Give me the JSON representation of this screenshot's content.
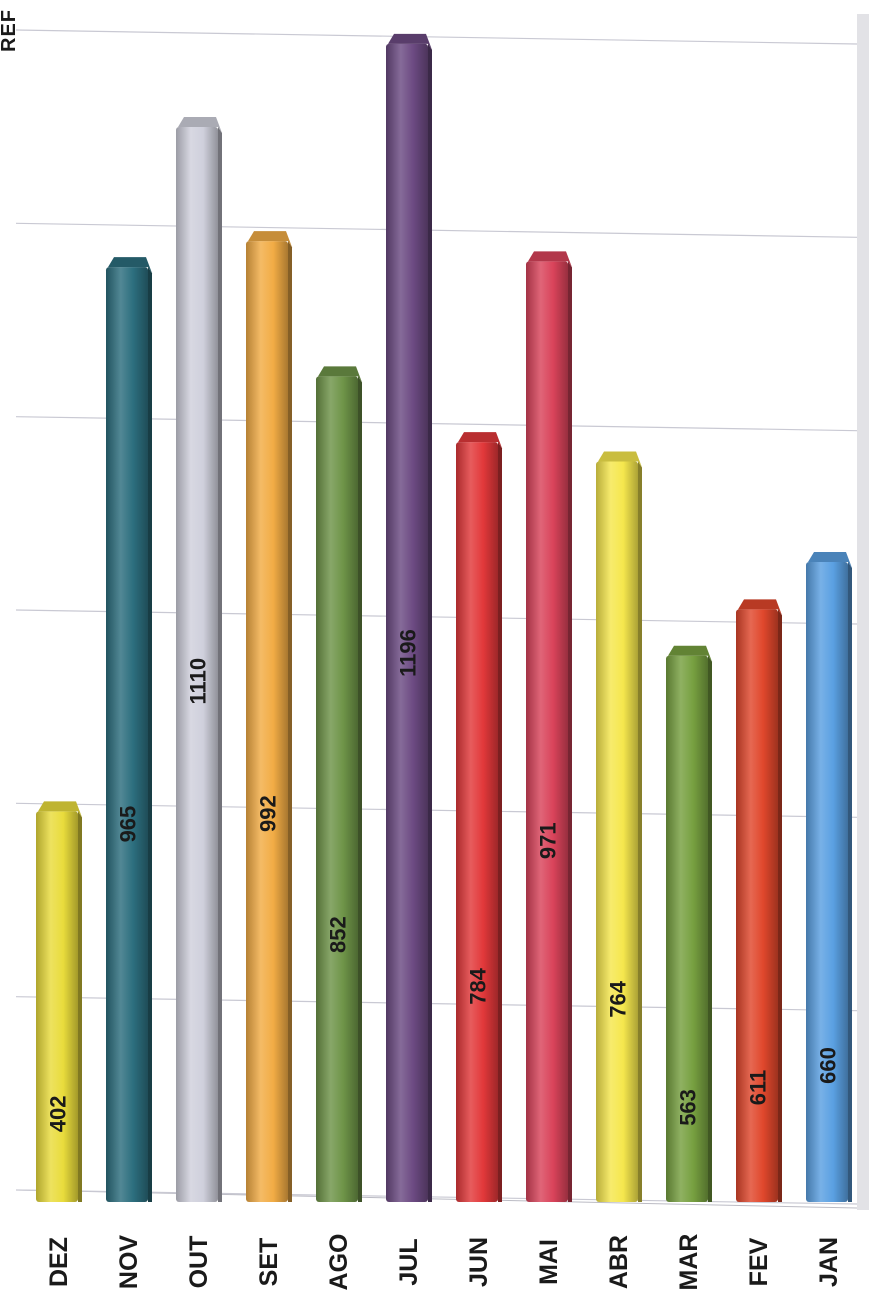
{
  "chart_data": {
    "type": "bar",
    "orientation": "vertical",
    "title_partial": "REF",
    "categories": [
      "DEZ",
      "NOV",
      "OUT",
      "SET",
      "AGO",
      "JUL",
      "JUN",
      "MAI",
      "ABR",
      "MAR",
      "FEV",
      "JAN"
    ],
    "values": [
      402,
      965,
      1110,
      992,
      852,
      1196,
      784,
      971,
      764,
      563,
      611,
      660
    ],
    "colors": [
      "#e9dc3c",
      "#2c6e7e",
      "#cfd0dc",
      "#f2ac45",
      "#6e9448",
      "#6c4a82",
      "#e2383a",
      "#d9435a",
      "#f5e74d",
      "#77a040",
      "#e0472c",
      "#5aa0e2"
    ],
    "ylim": [
      0,
      1200
    ],
    "grid": true,
    "show_data_labels": true,
    "legend": "none",
    "xlabel": "",
    "ylabel": ""
  }
}
